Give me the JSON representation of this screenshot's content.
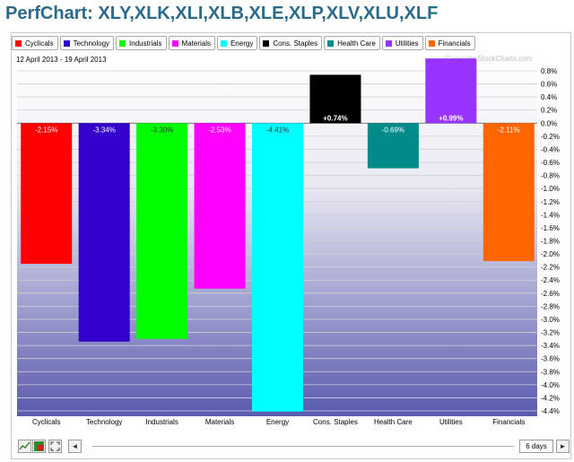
{
  "title": "PerfChart: XLY,XLK,XLI,XLB,XLE,XLP,XLV,XLU,XLF",
  "date_range": "12 April 2013 - 19 April 2013",
  "copyright": "Copyright StockCharts.com",
  "colors": {
    "title": "#2a6a8a",
    "Cyclicals": "#ff0000",
    "Technology": "#3300cc",
    "Industrials": "#00ff00",
    "Materials": "#ff00ff",
    "Energy": "#00ffff",
    "Cons. Staples": "#000000",
    "Health Care": "#008b8b",
    "Utilities": "#9933ff",
    "Financials": "#ff6600"
  },
  "controls": {
    "period_label": "6 days",
    "left_arrow": "◄",
    "right_arrow": "►"
  },
  "chart_data": {
    "type": "bar",
    "categories": [
      "Cyclicals",
      "Technology",
      "Industrials",
      "Materials",
      "Energy",
      "Cons. Staples",
      "Health Care",
      "Utilities",
      "Financials"
    ],
    "values": [
      -2.15,
      -3.34,
      -3.3,
      -2.53,
      -4.41,
      0.74,
      -0.69,
      0.99,
      -2.11
    ],
    "value_labels": [
      "-2.15%",
      "-3.34%",
      "-3.30%",
      "-2.53%",
      "-4.41%",
      "+0.74%",
      "-0.69%",
      "+0.99%",
      "-2.11%"
    ],
    "ylim": [
      -4.4,
      0.8
    ],
    "yticks": [
      "0.8%",
      "0.6%",
      "0.4%",
      "0.2%",
      "0.0%",
      "-0.2%",
      "-0.4%",
      "-0.6%",
      "-0.8%",
      "-1.0%",
      "-1.2%",
      "-1.4%",
      "-1.6%",
      "-1.8%",
      "-2.0%",
      "-2.2%",
      "-2.4%",
      "-2.6%",
      "-2.8%",
      "-3.0%",
      "-3.2%",
      "-3.4%",
      "-3.6%",
      "-3.8%",
      "-4.0%",
      "-4.2%",
      "-4.4%"
    ],
    "ytick_values": [
      0.8,
      0.6,
      0.4,
      0.2,
      0.0,
      -0.2,
      -0.4,
      -0.6,
      -0.8,
      -1.0,
      -1.2,
      -1.4,
      -1.6,
      -1.8,
      -2.0,
      -2.2,
      -2.4,
      -2.6,
      -2.8,
      -3.0,
      -3.2,
      -3.4,
      -3.6,
      -3.8,
      -4.0,
      -4.2,
      -4.4
    ],
    "grid": true,
    "legend": "top"
  }
}
